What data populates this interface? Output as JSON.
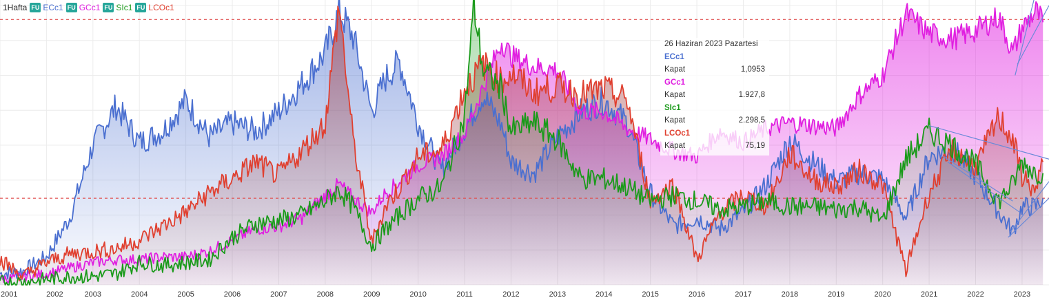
{
  "legend": {
    "interval": "1Hafta",
    "badge": "FU",
    "items": [
      {
        "label": "ECc1",
        "color": "#4a6fd0"
      },
      {
        "label": "GCc1",
        "color": "#e020e0"
      },
      {
        "label": "SIc1",
        "color": "#1a9a1a"
      },
      {
        "label": "LCOc1",
        "color": "#e04030"
      }
    ]
  },
  "tooltip": {
    "date": "26 Haziran 2023 Pazartesi",
    "close_label": "Kapat",
    "entries": [
      {
        "symbol": "ECc1",
        "value": "1,0953",
        "color": "#4a6fd0"
      },
      {
        "symbol": "GCc1",
        "value": "1.927,8",
        "color": "#e020e0"
      },
      {
        "symbol": "SIc1",
        "value": "2.298,5",
        "color": "#1a9a1a"
      },
      {
        "symbol": "LCOc1",
        "value": "75,19",
        "color": "#e04030"
      }
    ]
  },
  "chart_data": {
    "type": "area",
    "title": "",
    "xlabel": "",
    "ylabel": "",
    "normalized": true,
    "ylim": [
      0,
      100
    ],
    "grid": true,
    "legend_position": "top-left",
    "x_ticks": [
      "2001",
      "2002",
      "2003",
      "2004",
      "2005",
      "2006",
      "2007",
      "2008",
      "2009",
      "2010",
      "2011",
      "2012",
      "2013",
      "2014",
      "2015",
      "2016",
      "2017",
      "2018",
      "2019",
      "2020",
      "2021",
      "2022",
      "2023"
    ],
    "reference_lines": [
      95,
      31
    ],
    "series": [
      {
        "name": "ECc1",
        "color": "#4a6fd0",
        "x": [
          2001.0,
          2001.5,
          2002.0,
          2002.5,
          2003.0,
          2003.5,
          2004.0,
          2004.5,
          2005.0,
          2005.5,
          2006.0,
          2006.5,
          2007.0,
          2007.5,
          2008.0,
          2008.3,
          2008.6,
          2009.0,
          2009.3,
          2009.6,
          2010.0,
          2010.5,
          2011.0,
          2011.4,
          2011.8,
          2012.0,
          2012.5,
          2013.0,
          2013.5,
          2014.0,
          2014.5,
          2015.0,
          2015.5,
          2016.0,
          2016.5,
          2017.0,
          2017.5,
          2018.0,
          2018.5,
          2019.0,
          2019.5,
          2020.0,
          2020.5,
          2021.0,
          2021.5,
          2022.0,
          2022.5,
          2022.8,
          2023.0,
          2023.3,
          2023.45
        ],
        "values": [
          4,
          5,
          10,
          24,
          50,
          64,
          51,
          55,
          66,
          53,
          58,
          55,
          62,
          72,
          83,
          98,
          89,
          62,
          74,
          80,
          58,
          41,
          56,
          68,
          57,
          44,
          40,
          53,
          62,
          66,
          58,
          33,
          21,
          24,
          20,
          26,
          36,
          52,
          44,
          37,
          40,
          38,
          24,
          46,
          49,
          39,
          26,
          19,
          28,
          28,
          31
        ]
      },
      {
        "name": "GCc1",
        "color": "#e020e0",
        "x": [
          2001.0,
          2001.5,
          2002.0,
          2002.5,
          2003.0,
          2003.5,
          2004.0,
          2004.5,
          2005.0,
          2005.5,
          2006.0,
          2006.5,
          2007.0,
          2007.5,
          2008.0,
          2008.3,
          2008.6,
          2009.0,
          2009.3,
          2009.6,
          2010.0,
          2010.5,
          2011.0,
          2011.4,
          2011.8,
          2012.0,
          2012.5,
          2013.0,
          2013.5,
          2014.0,
          2014.5,
          2015.0,
          2015.5,
          2016.0,
          2016.5,
          2017.0,
          2017.5,
          2018.0,
          2018.5,
          2019.0,
          2019.5,
          2020.0,
          2020.5,
          2021.0,
          2021.5,
          2022.0,
          2022.5,
          2022.8,
          2023.0,
          2023.3,
          2023.45
        ],
        "values": [
          2,
          3,
          4,
          6,
          8,
          9,
          9,
          10,
          10,
          12,
          16,
          20,
          21,
          24,
          32,
          36,
          31,
          26,
          33,
          37,
          43,
          46,
          54,
          71,
          87,
          82,
          78,
          77,
          62,
          62,
          56,
          52,
          48,
          46,
          55,
          51,
          56,
          58,
          57,
          56,
          68,
          75,
          97,
          90,
          88,
          91,
          96,
          83,
          92,
          98,
          94
        ]
      },
      {
        "name": "SIc1",
        "color": "#1a9a1a",
        "x": [
          2001.0,
          2001.5,
          2002.0,
          2002.5,
          2003.0,
          2003.5,
          2004.0,
          2004.5,
          2005.0,
          2005.5,
          2006.0,
          2006.5,
          2007.0,
          2007.5,
          2008.0,
          2008.3,
          2008.6,
          2009.0,
          2009.3,
          2009.6,
          2010.0,
          2010.5,
          2011.0,
          2011.2,
          2011.4,
          2011.8,
          2012.0,
          2012.5,
          2013.0,
          2013.5,
          2014.0,
          2014.5,
          2015.0,
          2015.5,
          2016.0,
          2016.5,
          2017.0,
          2017.5,
          2018.0,
          2018.5,
          2019.0,
          2019.5,
          2020.0,
          2020.5,
          2021.0,
          2021.5,
          2022.0,
          2022.5,
          2022.8,
          2023.0,
          2023.3,
          2023.45
        ],
        "values": [
          1,
          1,
          2,
          3,
          3,
          4,
          8,
          7,
          8,
          9,
          17,
          22,
          23,
          25,
          30,
          34,
          28,
          14,
          20,
          25,
          31,
          35,
          60,
          100,
          77,
          70,
          55,
          58,
          52,
          38,
          38,
          35,
          30,
          32,
          30,
          27,
          28,
          30,
          28,
          28,
          27,
          28,
          23,
          45,
          55,
          50,
          43,
          30,
          36,
          44,
          40,
          40
        ]
      },
      {
        "name": "LCOc1",
        "color": "#e04030",
        "x": [
          2001.0,
          2001.5,
          2002.0,
          2002.5,
          2003.0,
          2003.5,
          2004.0,
          2004.5,
          2005.0,
          2005.5,
          2006.0,
          2006.5,
          2007.0,
          2007.5,
          2008.0,
          2008.3,
          2008.6,
          2009.0,
          2009.3,
          2009.6,
          2010.0,
          2010.5,
          2011.0,
          2011.4,
          2011.8,
          2012.0,
          2012.5,
          2013.0,
          2013.5,
          2014.0,
          2014.5,
          2015.0,
          2015.5,
          2016.0,
          2016.5,
          2017.0,
          2017.5,
          2018.0,
          2018.5,
          2019.0,
          2019.5,
          2020.0,
          2020.5,
          2021.0,
          2021.5,
          2022.0,
          2022.5,
          2022.8,
          2023.0,
          2023.3,
          2023.45
        ],
        "values": [
          9,
          3,
          8,
          11,
          12,
          13,
          16,
          21,
          26,
          33,
          38,
          44,
          39,
          48,
          58,
          100,
          52,
          15,
          28,
          35,
          46,
          48,
          70,
          79,
          73,
          76,
          69,
          71,
          68,
          70,
          66,
          30,
          36,
          9,
          26,
          32,
          28,
          47,
          38,
          35,
          41,
          36,
          5,
          33,
          48,
          42,
          60,
          52,
          39,
          33,
          44
        ]
      }
    ]
  }
}
